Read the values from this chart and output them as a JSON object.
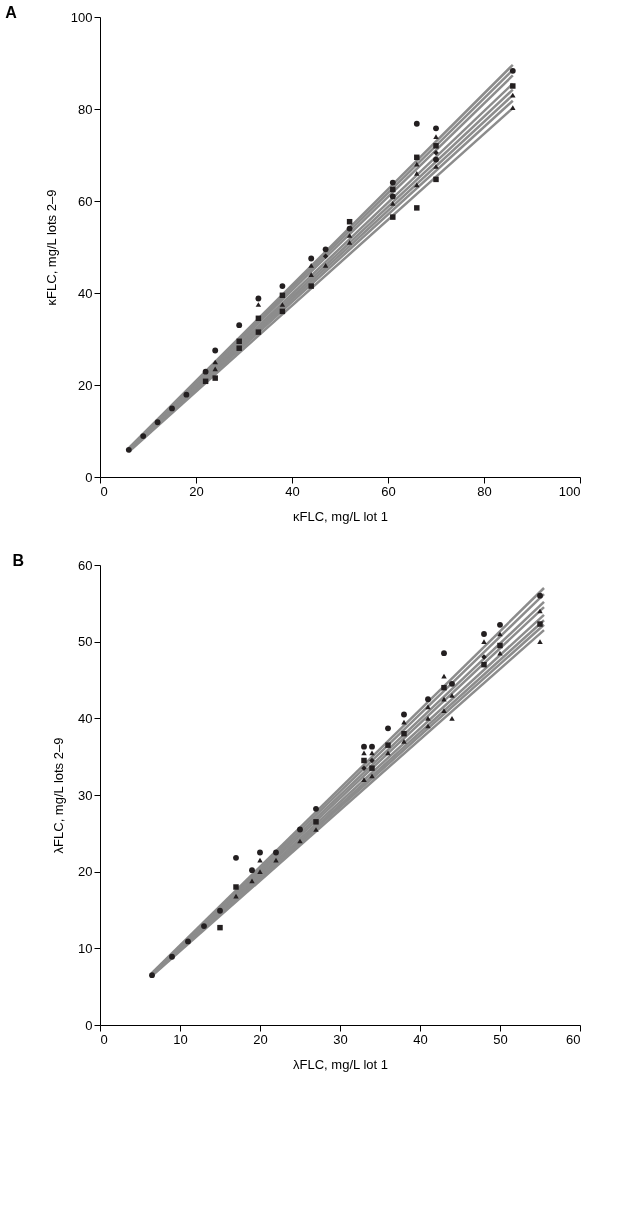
{
  "chart_data": [
    {
      "type": "scatter",
      "title": "A",
      "xlabel": "κFLC, mg/L lot 1",
      "ylabel": "κFLC, mg/L lots 2–9",
      "xlim": [
        0,
        100
      ],
      "ylim": [
        0,
        100
      ],
      "xticks": [
        0,
        20,
        40,
        60,
        80,
        100
      ],
      "yticks": [
        0,
        20,
        40,
        60,
        80,
        100
      ],
      "grid": false,
      "x": [
        6,
        9,
        12,
        15,
        18,
        22,
        24,
        29,
        33,
        38,
        44,
        47,
        52,
        61,
        66,
        70,
        86
      ],
      "series": [
        {
          "type": "line",
          "color": "#8c8c8c",
          "x": [
            6,
            86
          ],
          "values": [
            6.3,
            89.6
          ]
        },
        {
          "type": "line",
          "color": "#8c8c8c",
          "x": [
            6,
            86
          ],
          "values": [
            6.2,
            88.5
          ]
        },
        {
          "type": "line",
          "color": "#8c8c8c",
          "x": [
            6,
            86
          ],
          "values": [
            6.1,
            87.3
          ]
        },
        {
          "type": "line",
          "color": "#8c8c8c",
          "x": [
            6,
            86
          ],
          "values": [
            6.0,
            85.5
          ]
        },
        {
          "type": "line",
          "color": "#8c8c8c",
          "x": [
            6,
            86
          ],
          "values": [
            5.9,
            84.2
          ]
        },
        {
          "type": "line",
          "color": "#8c8c8c",
          "x": [
            6,
            86
          ],
          "values": [
            5.8,
            83.0
          ]
        },
        {
          "type": "line",
          "color": "#8c8c8c",
          "x": [
            6,
            86
          ],
          "values": [
            5.7,
            81.8
          ]
        },
        {
          "type": "line",
          "color": "#8c8c8c",
          "x": [
            6,
            86
          ],
          "values": [
            5.5,
            80.2
          ]
        },
        {
          "color": "#231f20",
          "marker": "circle",
          "values": [
            null,
            null,
            null,
            null,
            null,
            22.9,
            27.5,
            33.0,
            38.8,
            41.5,
            47.5,
            49.5,
            54.0,
            64.0,
            76.8,
            75.8,
            88.3
          ]
        },
        {
          "color": "#231f20",
          "marker": "triangle",
          "values": [
            null,
            null,
            null,
            null,
            null,
            null,
            null,
            null,
            null,
            null,
            46.0,
            null,
            52.5,
            null,
            68.0,
            74.0,
            80.3
          ]
        },
        {
          "color": "#231f20",
          "marker": "triangle",
          "values": [
            null,
            null,
            null,
            null,
            null,
            null,
            25.0,
            null,
            37.5,
            null,
            44.0,
            null,
            null,
            null,
            66.0,
            67.5,
            83.0
          ]
        },
        {
          "color": "#231f20",
          "marker": "square",
          "values": [
            null,
            null,
            null,
            null,
            null,
            null,
            null,
            29.5,
            34.5,
            39.5,
            null,
            null,
            55.5,
            62.5,
            69.5,
            72.0,
            85.0
          ]
        },
        {
          "color": "#231f20",
          "marker": "square",
          "values": [
            null,
            null,
            null,
            null,
            null,
            20.8,
            21.5,
            28.0,
            31.5,
            36.0,
            41.5,
            null,
            null,
            56.5,
            58.5,
            64.7,
            null
          ]
        },
        {
          "color": "#231f20",
          "marker": "diamond",
          "values": [
            null,
            null,
            null,
            null,
            null,
            null,
            null,
            null,
            null,
            null,
            null,
            48.0,
            null,
            null,
            null,
            70.5,
            null
          ]
        },
        {
          "color": "#231f20",
          "marker": "circle",
          "values": [
            5.9,
            8.9,
            11.9,
            14.9,
            17.9,
            null,
            null,
            null,
            null,
            null,
            null,
            null,
            null,
            61.0,
            null,
            69.0,
            null
          ]
        },
        {
          "color": "#231f20",
          "marker": "triangle",
          "values": [
            null,
            null,
            null,
            null,
            null,
            null,
            23.5,
            null,
            null,
            37.5,
            null,
            46.0,
            51.0,
            59.5,
            63.5,
            null,
            null
          ]
        }
      ]
    },
    {
      "type": "scatter",
      "title": "B",
      "xlabel": "λFLC, mg/L lot 1",
      "ylabel": "λFLC, mg/L lots 2–9",
      "xlim": [
        0,
        60
      ],
      "ylim": [
        0,
        60
      ],
      "xticks": [
        0,
        10,
        20,
        30,
        40,
        50,
        60
      ],
      "yticks": [
        0,
        10,
        20,
        30,
        40,
        50,
        60
      ],
      "grid": false,
      "x": [
        6.5,
        9,
        11,
        13,
        15,
        17,
        19,
        20,
        22,
        25,
        27,
        33,
        34,
        36,
        38,
        41,
        43,
        44,
        48,
        50,
        55
      ],
      "series": [
        {
          "type": "line",
          "color": "#8c8c8c",
          "x": [
            6.5,
            55.5
          ],
          "values": [
            6.8,
            57.0
          ]
        },
        {
          "type": "line",
          "color": "#8c8c8c",
          "x": [
            6.5,
            55.5
          ],
          "values": [
            6.7,
            56.2
          ]
        },
        {
          "type": "line",
          "color": "#8c8c8c",
          "x": [
            6.5,
            55.5
          ],
          "values": [
            6.7,
            55.2
          ]
        },
        {
          "type": "line",
          "color": "#8c8c8c",
          "x": [
            6.5,
            55.5
          ],
          "values": [
            6.6,
            54.5
          ]
        },
        {
          "type": "line",
          "color": "#8c8c8c",
          "x": [
            6.5,
            55.5
          ],
          "values": [
            6.6,
            53.5
          ]
        },
        {
          "type": "line",
          "color": "#8c8c8c",
          "x": [
            6.5,
            55.5
          ],
          "values": [
            6.5,
            52.8
          ]
        },
        {
          "type": "line",
          "color": "#8c8c8c",
          "x": [
            6.5,
            55.5
          ],
          "values": [
            6.5,
            52.2
          ]
        },
        {
          "type": "line",
          "color": "#8c8c8c",
          "x": [
            6.5,
            55.5
          ],
          "values": [
            6.4,
            51.5
          ]
        },
        {
          "color": "#231f20",
          "marker": "circle",
          "values": [
            null,
            null,
            null,
            null,
            null,
            21.8,
            20.2,
            22.5,
            22.5,
            25.5,
            28.2,
            36.3,
            36.3,
            38.7,
            40.5,
            42.5,
            48.5,
            44.5,
            51.0,
            52.2,
            56.0
          ]
        },
        {
          "color": "#231f20",
          "marker": "triangle",
          "values": [
            null,
            null,
            null,
            null,
            null,
            null,
            null,
            21.5,
            null,
            null,
            null,
            35.5,
            35.5,
            null,
            39.5,
            41.5,
            45.5,
            null,
            50.0,
            51.0,
            null
          ]
        },
        {
          "color": "#231f20",
          "marker": "triangle",
          "values": [
            null,
            null,
            null,
            null,
            null,
            16.8,
            18.8,
            20.0,
            21.5,
            24.0,
            null,
            null,
            null,
            35.5,
            37.0,
            40.0,
            42.5,
            43.0,
            null,
            48.5,
            54.0
          ]
        },
        {
          "color": "#231f20",
          "marker": "square",
          "values": [
            null,
            null,
            null,
            null,
            null,
            18.0,
            null,
            null,
            null,
            null,
            26.5,
            34.5,
            null,
            36.5,
            38.0,
            null,
            44.0,
            null,
            47.0,
            49.5,
            52.3
          ]
        },
        {
          "color": "#231f20",
          "marker": "square",
          "values": [
            null,
            null,
            null,
            null,
            12.7,
            null,
            null,
            null,
            null,
            null,
            null,
            null,
            33.5,
            null,
            null,
            null,
            null,
            null,
            null,
            null,
            null
          ]
        },
        {
          "color": "#231f20",
          "marker": "diamond",
          "values": [
            null,
            null,
            null,
            null,
            null,
            null,
            null,
            null,
            null,
            null,
            null,
            33.5,
            34.5,
            null,
            null,
            null,
            null,
            null,
            48.0,
            null,
            null
          ]
        },
        {
          "color": "#231f20",
          "marker": "circle",
          "values": [
            6.5,
            8.9,
            10.9,
            12.9,
            14.9,
            null,
            null,
            null,
            null,
            null,
            null,
            null,
            null,
            null,
            null,
            null,
            null,
            null,
            null,
            null,
            null
          ]
        },
        {
          "color": "#231f20",
          "marker": "triangle",
          "values": [
            null,
            null,
            null,
            null,
            null,
            null,
            null,
            null,
            null,
            null,
            25.5,
            32.0,
            32.5,
            null,
            null,
            39.0,
            41.0,
            40.0,
            null,
            null,
            50.0
          ]
        }
      ]
    }
  ]
}
